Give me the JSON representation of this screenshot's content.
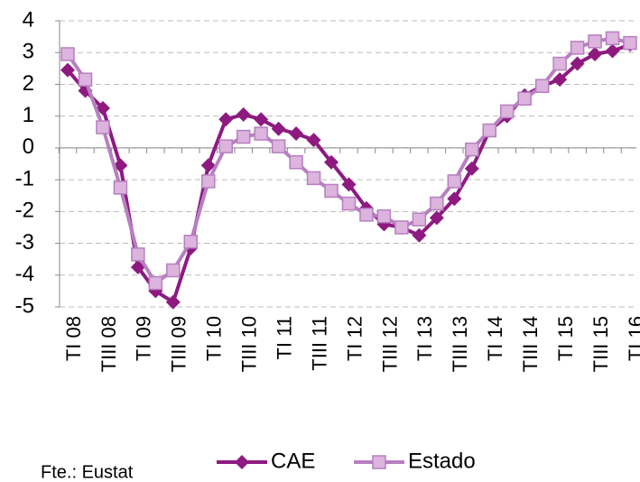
{
  "chart_data": {
    "type": "line",
    "categories": [
      "TI 08",
      null,
      "TIII 08",
      null,
      "TI 09",
      null,
      "TIII 09",
      null,
      "TI 10",
      null,
      "TIII 10",
      null,
      "TI 11",
      null,
      "TIII 11",
      null,
      "TI 12",
      null,
      "TIII 12",
      null,
      "TI 13",
      null,
      "TIII 13",
      null,
      "TI 14",
      null,
      "TIII 14",
      null,
      "TI 15",
      null,
      "TIII 15",
      null,
      "TI 16"
    ],
    "series": [
      {
        "name": "CAE",
        "color": "#8e1a80",
        "marker": "diamond",
        "values": [
          2.45,
          1.8,
          1.25,
          -0.55,
          -3.75,
          -4.5,
          -4.85,
          -3.15,
          -0.55,
          0.9,
          1.05,
          0.9,
          0.6,
          0.45,
          0.25,
          -0.45,
          -1.15,
          -1.9,
          -2.4,
          -2.5,
          -2.75,
          -2.2,
          -1.6,
          -0.65,
          0.55,
          1.0,
          1.65,
          1.95,
          2.15,
          2.65,
          2.95,
          3.05,
          3.25
        ]
      },
      {
        "name": "Estado",
        "color": "#b77fc0",
        "fill": "#dcb4de",
        "marker": "square",
        "values": [
          2.95,
          2.15,
          0.65,
          -1.25,
          -3.35,
          -4.25,
          -3.85,
          -2.95,
          -1.05,
          0.05,
          0.35,
          0.45,
          0.05,
          -0.45,
          -0.95,
          -1.35,
          -1.75,
          -2.1,
          -2.15,
          -2.5,
          -2.25,
          -1.75,
          -1.05,
          -0.05,
          0.55,
          1.15,
          1.55,
          1.95,
          2.65,
          3.15,
          3.35,
          3.45,
          3.3
        ]
      }
    ],
    "ylim": [
      -5,
      4
    ],
    "yticks": [
      -5,
      -4,
      -3,
      -2,
      -1,
      0,
      1,
      2,
      3,
      4
    ],
    "grid": true,
    "legend": "bottom",
    "source": "Fte.: Eustat"
  }
}
